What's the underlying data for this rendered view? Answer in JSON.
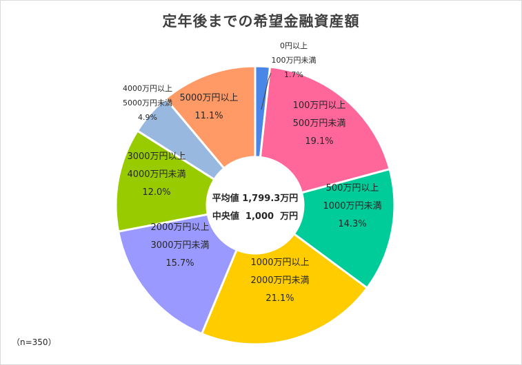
{
  "chart_data": {
    "type": "pie",
    "donut": true,
    "title": "定年後までの希望金融資産額",
    "categories": [
      "0円以上100万円未満",
      "100万円以上500万円未満",
      "500万円以上1000万円未満",
      "1000万円以上2000万円未満",
      "2000万円以上3000万円未満",
      "3000万円以上4000万円未満",
      "4000万円以上5000万円未満",
      "5000万円以上"
    ],
    "values": [
      1.7,
      19.1,
      14.3,
      21.1,
      15.7,
      12.0,
      4.9,
      11.1
    ],
    "labels": [
      [
        "0円以上",
        "100万円未満",
        "1.7%"
      ],
      [
        "100万円以上",
        "500万円未満",
        "19.1%"
      ],
      [
        "500万円以上",
        "1000万円未満",
        "14.3%"
      ],
      [
        "1000万円以上",
        "2000万円未満",
        "21.1%"
      ],
      [
        "2000万円以上",
        "3000万円未満",
        "15.7%"
      ],
      [
        "3000万円以上",
        "4000万円未満",
        "12.0%"
      ],
      [
        "4000万円以上",
        "5000万円未満",
        "4.9%"
      ],
      [
        "5000万円以上",
        "11.1%"
      ]
    ],
    "colors": [
      "#4a86e8",
      "#ff6699",
      "#00cc99",
      "#ffcc00",
      "#9999ff",
      "#99cc00",
      "#99b8e0",
      "#ff9966"
    ],
    "center_text": [
      "平均値 1,799.3万円",
      "中央値  1,000  万円"
    ],
    "legend": "none"
  },
  "note": "（n=350）"
}
